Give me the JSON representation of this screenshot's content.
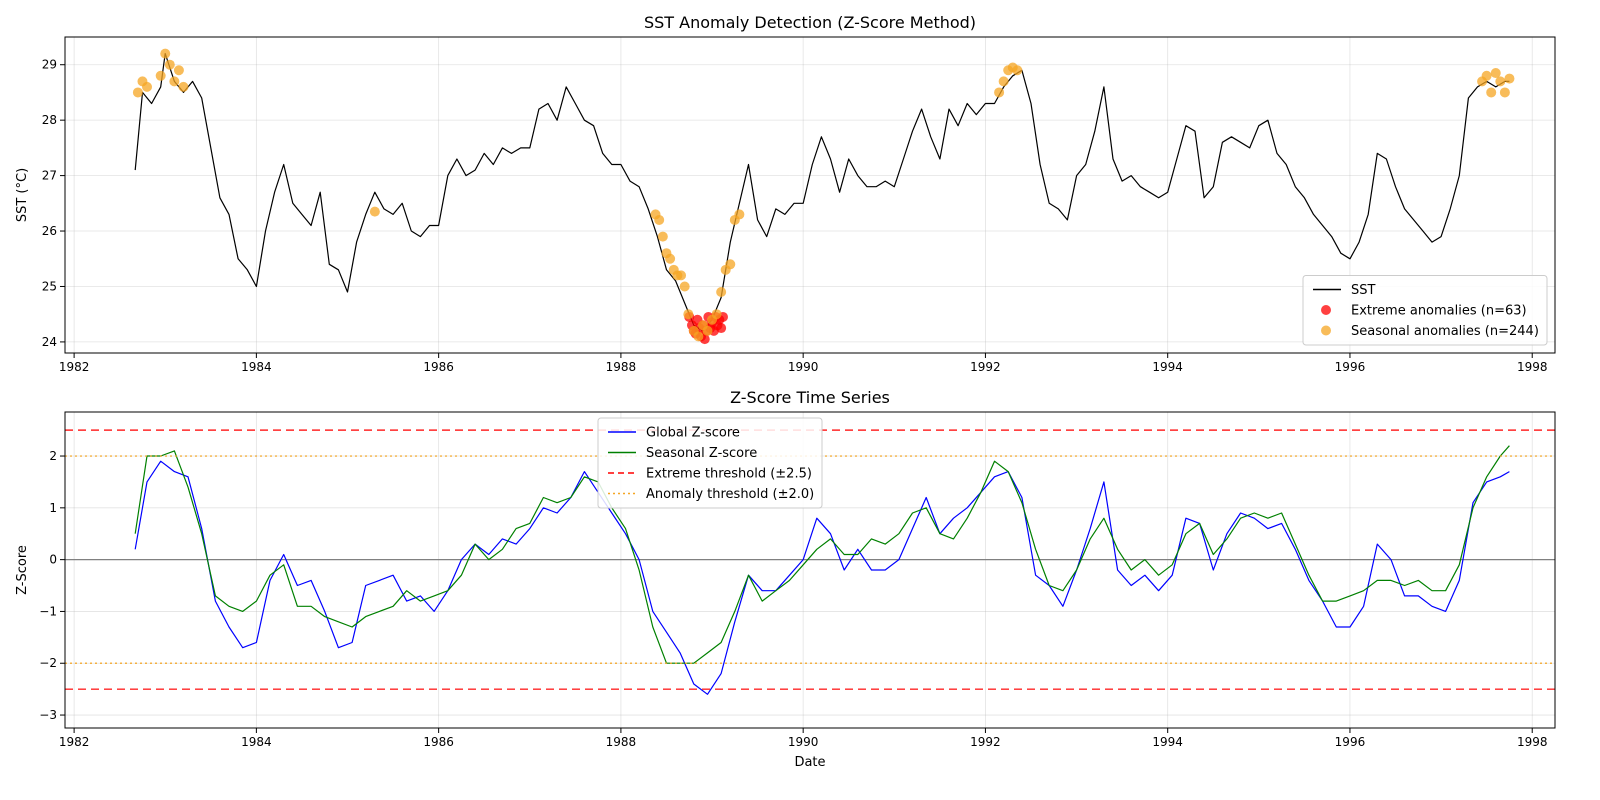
{
  "chart_data": [
    {
      "type": "line",
      "title": "SST Anomaly Detection (Z-Score Method)",
      "xlabel": "",
      "ylabel": "SST (°C)",
      "xlim": [
        1981.9,
        1998.25
      ],
      "ylim": [
        23.8,
        29.5
      ],
      "x_ticks": [
        1982,
        1984,
        1986,
        1988,
        1990,
        1992,
        1994,
        1996,
        1998
      ],
      "y_ticks": [
        24,
        25,
        26,
        27,
        28,
        29
      ],
      "grid": true,
      "legend": "lower-right",
      "series": [
        {
          "name": "SST",
          "kind": "line",
          "color": "#000000",
          "x": [
            1982.67,
            1982.75,
            1982.85,
            1982.95,
            1983.0,
            1983.1,
            1983.2,
            1983.3,
            1983.4,
            1983.5,
            1983.6,
            1983.7,
            1983.8,
            1983.9,
            1984.0,
            1984.1,
            1984.2,
            1984.3,
            1984.4,
            1984.5,
            1984.6,
            1984.7,
            1984.8,
            1984.9,
            1985.0,
            1985.1,
            1985.2,
            1985.3,
            1985.4,
            1985.5,
            1985.6,
            1985.7,
            1985.8,
            1985.9,
            1986.0,
            1986.1,
            1986.2,
            1986.3,
            1986.4,
            1986.5,
            1986.6,
            1986.7,
            1986.8,
            1986.9,
            1987.0,
            1987.1,
            1987.2,
            1987.3,
            1987.4,
            1987.5,
            1987.6,
            1987.7,
            1987.8,
            1987.9,
            1988.0,
            1988.1,
            1988.2,
            1988.3,
            1988.4,
            1988.5,
            1988.6,
            1988.7,
            1988.8,
            1988.9,
            1989.0,
            1989.1,
            1989.2,
            1989.3,
            1989.4,
            1989.5,
            1989.6,
            1989.7,
            1989.8,
            1989.9,
            1990.0,
            1990.1,
            1990.2,
            1990.3,
            1990.4,
            1990.5,
            1990.6,
            1990.7,
            1990.8,
            1990.9,
            1991.0,
            1991.1,
            1991.2,
            1991.3,
            1991.4,
            1991.5,
            1991.6,
            1991.7,
            1991.8,
            1991.9,
            1992.0,
            1992.1,
            1992.2,
            1992.3,
            1992.4,
            1992.5,
            1992.6,
            1992.7,
            1992.8,
            1992.9,
            1993.0,
            1993.1,
            1993.2,
            1993.3,
            1993.4,
            1993.5,
            1993.6,
            1993.7,
            1993.8,
            1993.9,
            1994.0,
            1994.1,
            1994.2,
            1994.3,
            1994.4,
            1994.5,
            1994.6,
            1994.7,
            1994.8,
            1994.9,
            1995.0,
            1995.1,
            1995.2,
            1995.3,
            1995.4,
            1995.5,
            1995.6,
            1995.7,
            1995.8,
            1995.9,
            1996.0,
            1996.1,
            1996.2,
            1996.3,
            1996.4,
            1996.5,
            1996.6,
            1996.7,
            1996.8,
            1996.9,
            1997.0,
            1997.1,
            1997.2,
            1997.3,
            1997.4,
            1997.5,
            1997.6,
            1997.7,
            1997.75
          ],
          "values": [
            27.1,
            28.5,
            28.3,
            28.6,
            29.2,
            28.7,
            28.5,
            28.7,
            28.4,
            27.5,
            26.6,
            26.3,
            25.5,
            25.3,
            25.0,
            26.0,
            26.7,
            27.2,
            26.5,
            26.3,
            26.1,
            26.7,
            25.4,
            25.3,
            24.9,
            25.8,
            26.3,
            26.7,
            26.4,
            26.3,
            26.5,
            26.0,
            25.9,
            26.1,
            26.1,
            27.0,
            27.3,
            27.0,
            27.1,
            27.4,
            27.2,
            27.5,
            27.4,
            27.5,
            27.5,
            28.2,
            28.3,
            28.0,
            28.6,
            28.3,
            28.0,
            27.9,
            27.4,
            27.2,
            27.2,
            26.9,
            26.8,
            26.4,
            25.9,
            25.3,
            25.1,
            24.7,
            24.3,
            24.2,
            24.4,
            24.8,
            25.8,
            26.5,
            27.2,
            26.2,
            25.9,
            26.4,
            26.3,
            26.5,
            26.5,
            27.2,
            27.7,
            27.3,
            26.7,
            27.3,
            27.0,
            26.8,
            26.8,
            26.9,
            26.8,
            27.3,
            27.8,
            28.2,
            27.7,
            27.3,
            28.2,
            27.9,
            28.3,
            28.1,
            28.3,
            28.3,
            28.6,
            28.8,
            28.9,
            28.3,
            27.2,
            26.5,
            26.4,
            26.2,
            27.0,
            27.2,
            27.8,
            28.6,
            27.3,
            26.9,
            27.0,
            26.8,
            26.7,
            26.6,
            26.7,
            27.3,
            27.9,
            27.8,
            26.6,
            26.8,
            27.6,
            27.7,
            27.6,
            27.5,
            27.9,
            28.0,
            27.4,
            27.2,
            26.8,
            26.6,
            26.3,
            26.1,
            25.9,
            25.6,
            25.5,
            25.8,
            26.3,
            27.4,
            27.3,
            26.8,
            26.4,
            26.2,
            26.0,
            25.8,
            25.9,
            26.4,
            27.0,
            28.4,
            28.6,
            28.7,
            28.6,
            28.7,
            28.7
          ]
        },
        {
          "name": "Extreme anomalies (n=63)",
          "kind": "scatter",
          "color": "#ff0000",
          "x": [
            1988.75,
            1988.78,
            1988.8,
            1988.82,
            1988.84,
            1988.86,
            1988.88,
            1988.9,
            1988.92,
            1988.94,
            1988.96,
            1988.98,
            1989.0,
            1989.02,
            1989.04,
            1989.06,
            1989.08,
            1989.1,
            1989.12
          ],
          "values": [
            24.45,
            24.3,
            24.2,
            24.15,
            24.4,
            24.25,
            24.1,
            24.3,
            24.05,
            24.2,
            24.45,
            24.25,
            24.35,
            24.2,
            24.45,
            24.3,
            24.4,
            24.25,
            24.45
          ]
        },
        {
          "name": "Seasonal anomalies (n=244)",
          "kind": "scatter",
          "color": "#f5a623",
          "x": [
            1982.7,
            1982.75,
            1982.8,
            1982.95,
            1983.0,
            1983.05,
            1983.1,
            1983.15,
            1983.2,
            1985.3,
            1988.38,
            1988.42,
            1988.46,
            1988.5,
            1988.54,
            1988.58,
            1988.62,
            1988.66,
            1988.7,
            1988.74,
            1988.8,
            1988.85,
            1988.9,
            1988.95,
            1989.0,
            1989.05,
            1989.1,
            1989.15,
            1989.2,
            1989.25,
            1989.3,
            1992.15,
            1992.2,
            1992.25,
            1992.3,
            1992.35,
            1997.45,
            1997.5,
            1997.55,
            1997.6,
            1997.65,
            1997.7,
            1997.75
          ],
          "values": [
            28.5,
            28.7,
            28.6,
            28.8,
            29.2,
            29.0,
            28.7,
            28.9,
            28.6,
            26.35,
            26.3,
            26.2,
            25.9,
            25.6,
            25.5,
            25.3,
            25.2,
            25.2,
            25.0,
            24.5,
            24.2,
            24.1,
            24.3,
            24.2,
            24.4,
            24.5,
            24.9,
            25.3,
            25.4,
            26.2,
            26.3,
            28.5,
            28.7,
            28.9,
            28.95,
            28.9,
            28.7,
            28.8,
            28.5,
            28.85,
            28.7,
            28.5,
            28.75
          ]
        }
      ]
    },
    {
      "type": "line",
      "title": "Z-Score Time Series",
      "xlabel": "Date",
      "ylabel": "Z-Score",
      "xlim": [
        1981.9,
        1998.25
      ],
      "ylim": [
        -3.25,
        2.85
      ],
      "x_ticks": [
        1982,
        1984,
        1986,
        1988,
        1990,
        1992,
        1994,
        1996,
        1998
      ],
      "y_ticks": [
        -3,
        -2,
        -1,
        0,
        1,
        2
      ],
      "grid": true,
      "legend": "upper-center",
      "series": [
        {
          "name": "Global Z-score",
          "kind": "line",
          "color": "#0000ff",
          "x": [
            1982.67,
            1982.8,
            1982.95,
            1983.1,
            1983.25,
            1983.4,
            1983.55,
            1983.7,
            1983.85,
            1984.0,
            1984.15,
            1984.3,
            1984.45,
            1984.6,
            1984.75,
            1984.9,
            1985.05,
            1985.2,
            1985.35,
            1985.5,
            1985.65,
            1985.8,
            1985.95,
            1986.1,
            1986.25,
            1986.4,
            1986.55,
            1986.7,
            1986.85,
            1987.0,
            1987.15,
            1987.3,
            1987.45,
            1987.6,
            1987.75,
            1987.9,
            1988.05,
            1988.2,
            1988.35,
            1988.5,
            1988.65,
            1988.8,
            1988.95,
            1989.1,
            1989.25,
            1989.4,
            1989.55,
            1989.7,
            1989.85,
            1990.0,
            1990.15,
            1990.3,
            1990.45,
            1990.6,
            1990.75,
            1990.9,
            1991.05,
            1991.2,
            1991.35,
            1991.5,
            1991.65,
            1991.8,
            1991.95,
            1992.1,
            1992.25,
            1992.4,
            1992.55,
            1992.7,
            1992.85,
            1993.0,
            1993.15,
            1993.3,
            1993.45,
            1993.6,
            1993.75,
            1993.9,
            1994.05,
            1994.2,
            1994.35,
            1994.5,
            1994.65,
            1994.8,
            1994.95,
            1995.1,
            1995.25,
            1995.4,
            1995.55,
            1995.7,
            1995.85,
            1996.0,
            1996.15,
            1996.3,
            1996.45,
            1996.6,
            1996.75,
            1996.9,
            1997.05,
            1997.2,
            1997.35,
            1997.5,
            1997.65,
            1997.75
          ],
          "values": [
            0.2,
            1.5,
            1.9,
            1.7,
            1.6,
            0.6,
            -0.8,
            -1.3,
            -1.7,
            -1.6,
            -0.4,
            0.1,
            -0.5,
            -0.4,
            -1.0,
            -1.7,
            -1.6,
            -0.5,
            -0.4,
            -0.3,
            -0.8,
            -0.7,
            -1.0,
            -0.6,
            0.0,
            0.3,
            0.1,
            0.4,
            0.3,
            0.6,
            1.0,
            0.9,
            1.2,
            1.7,
            1.3,
            0.9,
            0.5,
            0.0,
            -1.0,
            -1.4,
            -1.8,
            -2.4,
            -2.6,
            -2.2,
            -1.2,
            -0.3,
            -0.6,
            -0.6,
            -0.3,
            0.0,
            0.8,
            0.5,
            -0.2,
            0.2,
            -0.2,
            -0.2,
            0.0,
            0.6,
            1.2,
            0.5,
            0.8,
            1.0,
            1.3,
            1.6,
            1.7,
            1.2,
            -0.3,
            -0.5,
            -0.9,
            -0.2,
            0.6,
            1.5,
            -0.2,
            -0.5,
            -0.3,
            -0.6,
            -0.3,
            0.8,
            0.7,
            -0.2,
            0.5,
            0.9,
            0.8,
            0.6,
            0.7,
            0.2,
            -0.4,
            -0.8,
            -1.3,
            -1.3,
            -0.9,
            0.3,
            0.0,
            -0.7,
            -0.7,
            -0.9,
            -1.0,
            -0.4,
            1.1,
            1.5,
            1.6,
            1.7
          ]
        },
        {
          "name": "Seasonal Z-score",
          "kind": "line",
          "color": "#008000",
          "x": [
            1982.67,
            1982.8,
            1982.95,
            1983.1,
            1983.25,
            1983.4,
            1983.55,
            1983.7,
            1983.85,
            1984.0,
            1984.15,
            1984.3,
            1984.45,
            1984.6,
            1984.75,
            1984.9,
            1985.05,
            1985.2,
            1985.35,
            1985.5,
            1985.65,
            1985.8,
            1985.95,
            1986.1,
            1986.25,
            1986.4,
            1986.55,
            1986.7,
            1986.85,
            1987.0,
            1987.15,
            1987.3,
            1987.45,
            1987.6,
            1987.75,
            1987.9,
            1988.05,
            1988.2,
            1988.35,
            1988.5,
            1988.65,
            1988.8,
            1988.95,
            1989.1,
            1989.25,
            1989.4,
            1989.55,
            1989.7,
            1989.85,
            1990.0,
            1990.15,
            1990.3,
            1990.45,
            1990.6,
            1990.75,
            1990.9,
            1991.05,
            1991.2,
            1991.35,
            1991.5,
            1991.65,
            1991.8,
            1991.95,
            1992.1,
            1992.25,
            1992.4,
            1992.55,
            1992.7,
            1992.85,
            1993.0,
            1993.15,
            1993.3,
            1993.45,
            1993.6,
            1993.75,
            1993.9,
            1994.05,
            1994.2,
            1994.35,
            1994.5,
            1994.65,
            1994.8,
            1994.95,
            1995.1,
            1995.25,
            1995.4,
            1995.55,
            1995.7,
            1995.85,
            1996.0,
            1996.15,
            1996.3,
            1996.45,
            1996.6,
            1996.75,
            1996.9,
            1997.05,
            1997.2,
            1997.35,
            1997.5,
            1997.65,
            1997.75
          ],
          "values": [
            0.5,
            2.0,
            2.0,
            2.1,
            1.4,
            0.5,
            -0.7,
            -0.9,
            -1.0,
            -0.8,
            -0.3,
            -0.1,
            -0.9,
            -0.9,
            -1.1,
            -1.2,
            -1.3,
            -1.1,
            -1.0,
            -0.9,
            -0.6,
            -0.8,
            -0.7,
            -0.6,
            -0.3,
            0.3,
            0.0,
            0.2,
            0.6,
            0.7,
            1.2,
            1.1,
            1.2,
            1.6,
            1.5,
            1.0,
            0.6,
            -0.2,
            -1.3,
            -2.0,
            -2.0,
            -2.0,
            -1.8,
            -1.6,
            -1.0,
            -0.3,
            -0.8,
            -0.6,
            -0.4,
            -0.1,
            0.2,
            0.4,
            0.1,
            0.1,
            0.4,
            0.3,
            0.5,
            0.9,
            1.0,
            0.5,
            0.4,
            0.8,
            1.3,
            1.9,
            1.7,
            1.1,
            0.2,
            -0.5,
            -0.6,
            -0.2,
            0.4,
            0.8,
            0.2,
            -0.2,
            0.0,
            -0.3,
            -0.1,
            0.5,
            0.7,
            0.1,
            0.4,
            0.8,
            0.9,
            0.8,
            0.9,
            0.3,
            -0.3,
            -0.8,
            -0.8,
            -0.7,
            -0.6,
            -0.4,
            -0.4,
            -0.5,
            -0.4,
            -0.6,
            -0.6,
            -0.1,
            1.0,
            1.6,
            2.0,
            2.2
          ]
        },
        {
          "name": "Extreme threshold (±2.5)",
          "kind": "hline",
          "color": "#ff0000",
          "dash": "dashed",
          "values": [
            2.5,
            -2.5
          ]
        },
        {
          "name": "Anomaly threshold (±2.0)",
          "kind": "hline",
          "color": "#f5a623",
          "dash": "dotted",
          "values": [
            2.0,
            -2.0
          ]
        }
      ]
    }
  ]
}
